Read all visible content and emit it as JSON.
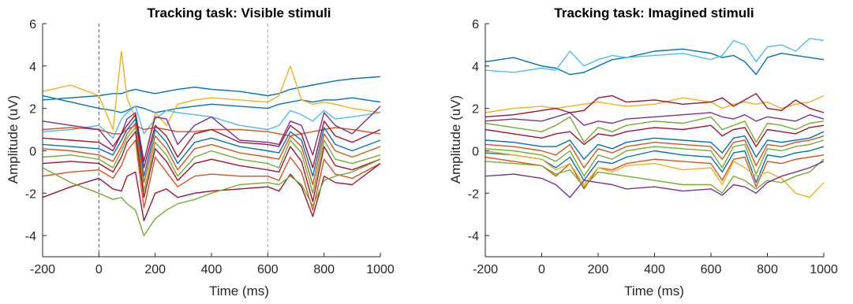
{
  "colors": [
    "#0072BD",
    "#D95319",
    "#EDB120",
    "#7E2F8E",
    "#77AC30",
    "#4DBEEE",
    "#A2142F"
  ],
  "chart_data": [
    {
      "type": "line",
      "title": "Tracking task: Visible stimuli",
      "xlabel": "Time (ms)",
      "ylabel": "Amplitude (uV)",
      "xlim": [
        -200,
        1000
      ],
      "ylim": [
        -5,
        6
      ],
      "xticks": [
        -200,
        0,
        200,
        400,
        600,
        800,
        1000
      ],
      "yticks": [
        -4,
        -2,
        0,
        2,
        4,
        6
      ],
      "vlines": [
        {
          "x": 0,
          "color": "#555555",
          "style": "dashed"
        },
        {
          "x": 600,
          "color": "#aaaaaa",
          "style": "dashed"
        }
      ],
      "x": [
        -200,
        -100,
        0,
        50,
        80,
        100,
        130,
        160,
        200,
        240,
        280,
        340,
        400,
        500,
        600,
        640,
        680,
        720,
        760,
        800,
        840,
        900,
        1000
      ],
      "series": [
        {
          "values": [
            2.4,
            2.5,
            2.6,
            2.7,
            2.7,
            2.8,
            2.9,
            2.8,
            2.7,
            2.8,
            2.9,
            3.0,
            2.9,
            2.8,
            2.6,
            2.7,
            2.9,
            3.0,
            3.1,
            3.2,
            3.3,
            3.4,
            3.5
          ],
          "color": "#0072BD"
        },
        {
          "values": [
            2.6,
            2.3,
            2.0,
            1.9,
            1.8,
            1.9,
            2.1,
            2.0,
            1.8,
            1.9,
            2.0,
            2.1,
            2.2,
            2.1,
            2.0,
            2.2,
            2.3,
            2.4,
            2.3,
            2.4,
            2.4,
            2.5,
            2.3
          ],
          "color": "#0072BD"
        },
        {
          "values": [
            2.8,
            3.1,
            2.6,
            1.0,
            4.7,
            2.5,
            1.5,
            -0.5,
            1.8,
            1.2,
            2.2,
            2.4,
            2.5,
            2.4,
            2.3,
            2.6,
            4.0,
            2.4,
            2.2,
            2.3,
            2.2,
            2.0,
            1.8
          ],
          "color": "#EDB120"
        },
        {
          "values": [
            0.9,
            1.0,
            1.2,
            0.6,
            1.5,
            1.8,
            2.1,
            0.8,
            1.5,
            1.9,
            1.8,
            1.7,
            1.6,
            1.2,
            1.0,
            1.2,
            1.9,
            1.7,
            1.4,
            1.9,
            1.5,
            1.6,
            1.8
          ],
          "color": "#4DBEEE"
        },
        {
          "values": [
            1.0,
            1.1,
            1.0,
            0.8,
            0.8,
            1.0,
            1.2,
            1.0,
            1.1,
            1.0,
            0.9,
            0.9,
            1.0,
            1.0,
            0.9,
            0.8,
            0.7,
            0.8,
            0.9,
            1.0,
            1.1,
            1.0,
            0.8
          ],
          "color": "#D95319"
        },
        {
          "values": [
            1.4,
            1.2,
            1.0,
            0.2,
            0.8,
            1.5,
            1.8,
            -0.5,
            1.6,
            1.5,
            0.3,
            1.2,
            1.6,
            0.5,
            0.4,
            0.3,
            1.4,
            1.2,
            -0.2,
            1.8,
            1.2,
            0.8,
            2.1
          ],
          "color": "#7E2F8E"
        },
        {
          "values": [
            0.6,
            0.5,
            0.4,
            0.0,
            0.8,
            1.2,
            1.7,
            -0.8,
            1.2,
            0.7,
            -0.3,
            0.8,
            1.0,
            0.4,
            0.3,
            0.2,
            1.2,
            0.8,
            -0.8,
            1.4,
            0.7,
            0.4,
            1.0
          ],
          "color": "#A2142F"
        },
        {
          "values": [
            0.3,
            0.2,
            0.1,
            -0.2,
            0.5,
            1.0,
            1.5,
            -1.2,
            1.0,
            0.4,
            -0.6,
            0.4,
            0.6,
            0.2,
            0.0,
            -0.1,
            0.9,
            0.5,
            -1.2,
            1.1,
            0.3,
            0.0,
            0.5
          ],
          "color": "#0072BD"
        },
        {
          "values": [
            0.1,
            0.0,
            -0.2,
            -0.5,
            0.2,
            0.8,
            1.3,
            -1.5,
            0.7,
            0.1,
            -0.9,
            0.1,
            0.3,
            -0.1,
            -0.3,
            -0.4,
            0.7,
            0.2,
            -1.6,
            0.8,
            0.0,
            -0.3,
            0.2
          ],
          "color": "#D95319"
        },
        {
          "values": [
            -0.3,
            -0.2,
            -0.4,
            -0.8,
            0.0,
            0.6,
            1.1,
            -1.9,
            0.4,
            -0.2,
            -1.2,
            -0.3,
            0.0,
            -0.4,
            -0.6,
            -0.8,
            0.5,
            -0.1,
            -2.0,
            0.5,
            -0.4,
            -0.6,
            -0.2
          ],
          "color": "#77AC30"
        },
        {
          "values": [
            -0.6,
            -0.5,
            -0.6,
            -1.0,
            -0.3,
            0.4,
            0.9,
            -2.2,
            0.1,
            -0.5,
            -1.4,
            -0.6,
            -0.4,
            -0.7,
            -0.9,
            -1.0,
            0.2,
            -0.5,
            -2.4,
            0.2,
            -0.7,
            -0.9,
            -0.4
          ],
          "color": "#A2142F"
        },
        {
          "values": [
            -1.2,
            -1.0,
            -0.9,
            -1.3,
            -0.7,
            0.0,
            0.5,
            -2.7,
            -0.3,
            -1.0,
            -1.7,
            -1.2,
            -1.1,
            -1.2,
            -1.2,
            -1.4,
            -0.3,
            -1.0,
            -2.8,
            -0.4,
            -1.1,
            -1.3,
            -0.6
          ],
          "color": "#D95319"
        },
        {
          "values": [
            -2.2,
            -1.7,
            -1.3,
            -1.8,
            -1.9,
            -1.2,
            -1.0,
            -3.3,
            -2.0,
            -1.8,
            -2.2,
            -2.0,
            -1.9,
            -1.8,
            -1.7,
            -1.9,
            -1.1,
            -1.7,
            -3.1,
            -1.2,
            -1.5,
            -1.6,
            -0.6
          ],
          "color": "#A2142F"
        },
        {
          "values": [
            -0.8,
            -1.5,
            -2.0,
            -2.3,
            -2.2,
            -2.5,
            -2.8,
            -4.0,
            -3.2,
            -2.8,
            -2.5,
            -2.3,
            -2.0,
            -1.6,
            -1.5,
            -1.6,
            -1.2,
            -1.6,
            -2.6,
            -1.4,
            -1.2,
            -1.0,
            -0.4
          ],
          "color": "#77AC30"
        }
      ]
    },
    {
      "type": "line",
      "title": "Tracking task: Imagined stimuli",
      "xlabel": "Time (ms)",
      "ylabel": "Amplitude (uV)",
      "xlim": [
        -200,
        1000
      ],
      "ylim": [
        -5,
        6
      ],
      "xticks": [
        -200,
        0,
        200,
        400,
        600,
        800,
        1000
      ],
      "yticks": [
        -4,
        -2,
        0,
        2,
        4,
        6
      ],
      "x": [
        -200,
        -100,
        0,
        50,
        100,
        150,
        200,
        250,
        300,
        400,
        500,
        600,
        640,
        680,
        720,
        760,
        800,
        850,
        900,
        950,
        1000
      ],
      "series": [
        {
          "values": [
            4.2,
            4.4,
            4.0,
            3.9,
            3.6,
            3.7,
            4.0,
            4.3,
            4.4,
            4.7,
            4.8,
            4.6,
            4.4,
            4.5,
            4.2,
            3.6,
            4.4,
            4.6,
            4.5,
            4.4,
            4.3
          ],
          "color": "#0072BD"
        },
        {
          "values": [
            3.8,
            3.7,
            3.9,
            3.8,
            4.7,
            4.0,
            4.3,
            4.5,
            4.4,
            4.5,
            4.6,
            4.3,
            4.5,
            5.2,
            5.0,
            4.2,
            4.9,
            5.0,
            4.7,
            5.3,
            5.2
          ],
          "color": "#4DBEEE"
        },
        {
          "values": [
            1.8,
            2.0,
            2.1,
            2.0,
            2.1,
            2.2,
            2.3,
            2.2,
            2.1,
            2.2,
            2.5,
            2.3,
            2.0,
            2.2,
            2.3,
            2.2,
            2.3,
            2.0,
            2.2,
            2.3,
            2.6
          ],
          "color": "#EDB120"
        },
        {
          "values": [
            1.6,
            1.7,
            1.9,
            2.0,
            1.8,
            1.9,
            2.5,
            2.6,
            2.3,
            2.4,
            2.2,
            2.3,
            2.5,
            2.1,
            2.4,
            2.7,
            2.0,
            1.9,
            2.4,
            2.0,
            1.8
          ],
          "color": "#A2142F"
        },
        {
          "values": [
            1.4,
            1.5,
            1.4,
            1.6,
            1.8,
            1.2,
            1.4,
            1.3,
            1.5,
            1.6,
            1.7,
            1.8,
            1.6,
            1.5,
            1.7,
            1.4,
            1.6,
            1.5,
            1.4,
            1.7,
            1.5
          ],
          "color": "#7E2F8E"
        },
        {
          "values": [
            1.3,
            1.1,
            0.9,
            1.2,
            1.6,
            0.4,
            1.1,
            0.9,
            1.2,
            1.4,
            1.3,
            1.6,
            1.0,
            1.2,
            1.4,
            0.4,
            1.3,
            1.2,
            1.0,
            1.3,
            1.4
          ],
          "color": "#77AC30"
        },
        {
          "values": [
            1.0,
            0.8,
            0.6,
            0.8,
            0.9,
            0.3,
            0.8,
            0.7,
            0.9,
            1.1,
            1.0,
            1.2,
            0.7,
            1.0,
            1.1,
            0.2,
            1.0,
            0.9,
            0.8,
            1.1,
            1.2
          ],
          "color": "#A2142F"
        },
        {
          "values": [
            0.5,
            0.4,
            0.2,
            0.2,
            0.5,
            -0.4,
            0.3,
            0.1,
            0.4,
            0.6,
            0.5,
            0.4,
            -0.1,
            0.6,
            0.7,
            -0.3,
            0.5,
            0.4,
            0.5,
            0.6,
            0.9
          ],
          "color": "#0072BD"
        },
        {
          "values": [
            0.3,
            0.2,
            0.0,
            -0.2,
            0.3,
            -0.8,
            0.1,
            -0.1,
            0.2,
            0.4,
            0.3,
            0.2,
            -0.4,
            0.4,
            0.5,
            -0.7,
            0.3,
            0.2,
            0.4,
            0.5,
            0.7
          ],
          "color": "#D95319"
        },
        {
          "values": [
            0.1,
            0.0,
            -0.2,
            -0.5,
            0.0,
            -1.2,
            -0.2,
            -0.4,
            0.0,
            0.2,
            0.1,
            0.0,
            -0.8,
            0.2,
            0.3,
            -1.1,
            0.1,
            0.0,
            0.2,
            0.3,
            0.5
          ],
          "color": "#77AC30"
        },
        {
          "values": [
            -0.1,
            -0.2,
            -0.4,
            -0.8,
            -0.3,
            -1.4,
            -0.5,
            -0.6,
            -0.3,
            0.0,
            -0.2,
            -0.3,
            -1.0,
            -0.1,
            0.0,
            -1.5,
            -0.2,
            -0.3,
            -0.1,
            0.0,
            0.2
          ],
          "color": "#0072BD"
        },
        {
          "values": [
            -0.3,
            -0.5,
            -0.7,
            -1.2,
            -0.6,
            -1.8,
            -0.8,
            -0.9,
            -0.6,
            -0.4,
            -0.5,
            -0.6,
            -1.4,
            -0.4,
            -0.3,
            -1.7,
            -0.5,
            -0.6,
            -0.4,
            -0.3,
            -0.2
          ],
          "color": "#D95319"
        },
        {
          "values": [
            0.0,
            -0.2,
            -0.4,
            -0.9,
            -0.6,
            -1.6,
            -0.8,
            -1.0,
            -0.7,
            -0.6,
            -0.9,
            -0.8,
            -1.6,
            -0.5,
            -0.8,
            -1.2,
            -1.0,
            -1.3,
            -2.0,
            -2.2,
            -1.5
          ],
          "color": "#EDB120"
        },
        {
          "values": [
            -0.5,
            -0.6,
            -0.7,
            -1.1,
            -0.9,
            -1.7,
            -1.0,
            -1.1,
            -1.2,
            -1.4,
            -1.6,
            -1.6,
            -2.0,
            -1.2,
            -1.4,
            -1.8,
            -1.4,
            -1.5,
            -1.2,
            -1.0,
            -0.4
          ],
          "color": "#77AC30"
        },
        {
          "values": [
            -1.2,
            -1.1,
            -1.3,
            -1.6,
            -2.2,
            -1.4,
            -1.5,
            -1.6,
            -1.8,
            -1.7,
            -1.9,
            -1.8,
            -2.1,
            -1.6,
            -1.7,
            -2.0,
            -1.5,
            -1.2,
            -1.0,
            -0.8,
            -0.5
          ],
          "color": "#7E2F8E"
        }
      ]
    }
  ]
}
